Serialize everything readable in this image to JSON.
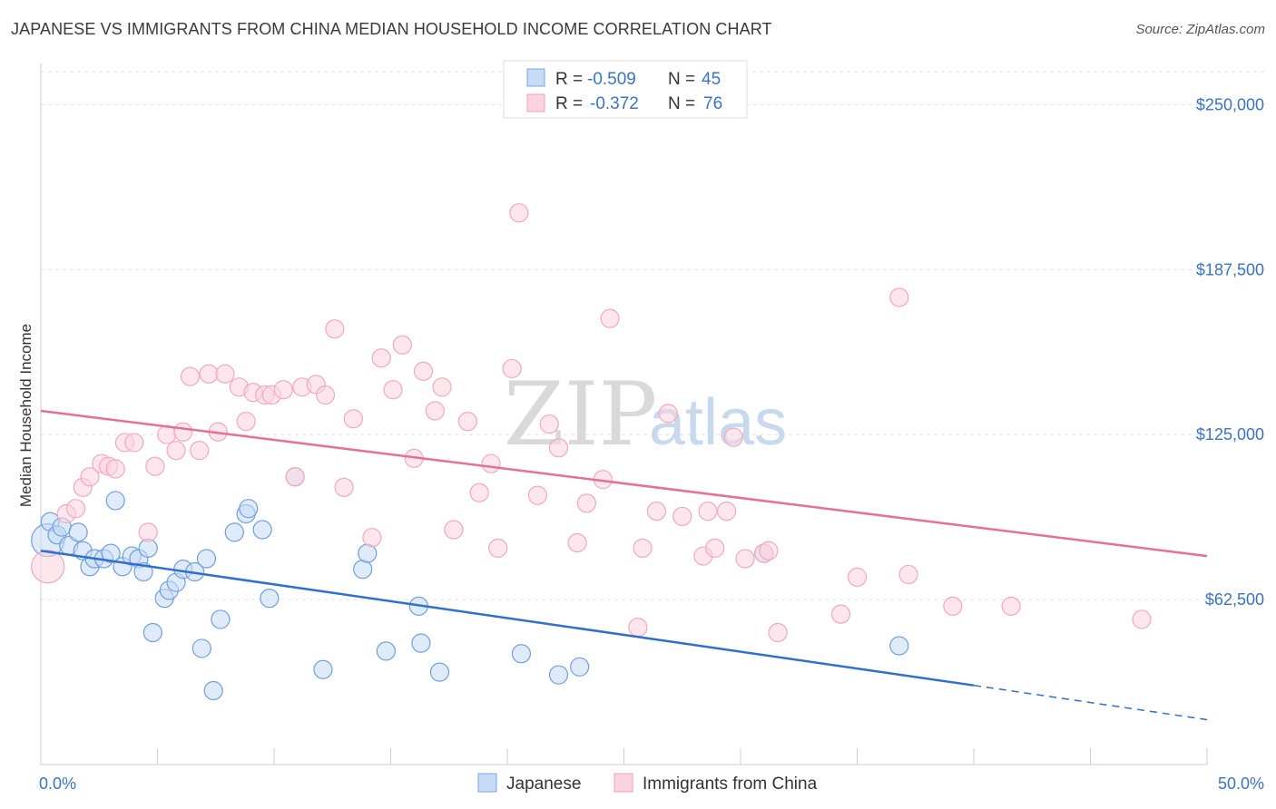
{
  "title": "JAPANESE VS IMMIGRANTS FROM CHINA MEDIAN HOUSEHOLD INCOME CORRELATION CHART",
  "source": "Source: ZipAtlas.com",
  "watermark": {
    "zip": "ZIP",
    "atlas": "atlas"
  },
  "chart_data": {
    "type": "scatter",
    "title": "JAPANESE VS IMMIGRANTS FROM CHINA MEDIAN HOUSEHOLD INCOME CORRELATION CHART",
    "ylabel": "Median Household Income",
    "xlim": [
      0,
      50
    ],
    "ylim": [
      0,
      262500
    ],
    "x_tick_labels": {
      "left": "0.0%",
      "right": "50.0%"
    },
    "y_ticks": [
      62500,
      125000,
      187500,
      250000
    ],
    "y_tick_labels": [
      "$62,500",
      "$125,000",
      "$187,500",
      "$250,000"
    ],
    "grid": true,
    "legend": {
      "position": "top-center",
      "rows": [
        {
          "r_label": "R = ",
          "r_value": "-0.509",
          "n_label": "N = ",
          "n_value": "45"
        },
        {
          "r_label": "R = ",
          "r_value": "-0.372",
          "n_label": "N = ",
          "n_value": "76"
        }
      ]
    },
    "series": [
      {
        "name": "Japanese",
        "color": "#6f9fdc",
        "line_color": "#2f6fcf",
        "trend": {
          "x": [
            0,
            40
          ],
          "y": [
            81000,
            30000
          ],
          "dash_to": [
            50,
            17000
          ]
        },
        "points": [
          [
            0.3,
            85000,
            18
          ],
          [
            0.4,
            92000,
            10
          ],
          [
            0.7,
            87000,
            10
          ],
          [
            0.9,
            90000,
            10
          ],
          [
            1.2,
            83000,
            10
          ],
          [
            1.6,
            88000,
            10
          ],
          [
            1.8,
            81000,
            10
          ],
          [
            2.1,
            75000,
            10
          ],
          [
            2.3,
            78000,
            10
          ],
          [
            2.7,
            78000,
            10
          ],
          [
            3.0,
            80000,
            10
          ],
          [
            3.2,
            100000,
            10
          ],
          [
            3.5,
            75000,
            10
          ],
          [
            3.9,
            79000,
            10
          ],
          [
            4.2,
            78000,
            10
          ],
          [
            4.4,
            73000,
            10
          ],
          [
            4.6,
            82000,
            10
          ],
          [
            4.8,
            50000,
            10
          ],
          [
            5.3,
            63000,
            10
          ],
          [
            5.5,
            66000,
            10
          ],
          [
            5.8,
            69000,
            10
          ],
          [
            6.1,
            74000,
            10
          ],
          [
            6.6,
            73000,
            10
          ],
          [
            6.9,
            44000,
            10
          ],
          [
            7.1,
            78000,
            10
          ],
          [
            7.4,
            28000,
            10
          ],
          [
            7.7,
            55000,
            10
          ],
          [
            8.3,
            88000,
            10
          ],
          [
            8.8,
            95000,
            10
          ],
          [
            8.9,
            97000,
            10
          ],
          [
            9.5,
            89000,
            10
          ],
          [
            9.8,
            63000,
            10
          ],
          [
            10.9,
            109000,
            10
          ],
          [
            12.1,
            36000,
            10
          ],
          [
            13.8,
            74000,
            10
          ],
          [
            14.0,
            80000,
            10
          ],
          [
            14.8,
            43000,
            10
          ],
          [
            16.2,
            60000,
            10
          ],
          [
            16.3,
            46000,
            10
          ],
          [
            17.1,
            35000,
            10
          ],
          [
            20.6,
            42000,
            10
          ],
          [
            22.2,
            34000,
            10
          ],
          [
            23.1,
            37000,
            10
          ],
          [
            31.0,
            80000,
            10
          ],
          [
            36.8,
            45000,
            10
          ]
        ]
      },
      {
        "name": "Immigrants from China",
        "color": "#f3a8bd",
        "line_color": "#e56f97",
        "trend": {
          "x": [
            0,
            50
          ],
          "y": [
            134000,
            79000
          ]
        },
        "points": [
          [
            0.3,
            75000,
            18
          ],
          [
            1.1,
            95000,
            10
          ],
          [
            1.5,
            97000,
            10
          ],
          [
            1.8,
            105000,
            10
          ],
          [
            2.1,
            109000,
            10
          ],
          [
            2.6,
            114000,
            10
          ],
          [
            2.9,
            113000,
            10
          ],
          [
            3.2,
            112000,
            10
          ],
          [
            3.6,
            122000,
            10
          ],
          [
            4.0,
            122000,
            10
          ],
          [
            4.6,
            88000,
            10
          ],
          [
            4.9,
            113000,
            10
          ],
          [
            5.4,
            125000,
            10
          ],
          [
            5.8,
            119000,
            10
          ],
          [
            6.1,
            126000,
            10
          ],
          [
            6.4,
            147000,
            10
          ],
          [
            6.8,
            119000,
            10
          ],
          [
            7.2,
            148000,
            10
          ],
          [
            7.6,
            126000,
            10
          ],
          [
            7.9,
            148000,
            10
          ],
          [
            8.5,
            143000,
            10
          ],
          [
            8.8,
            130000,
            10
          ],
          [
            9.1,
            141000,
            10
          ],
          [
            9.6,
            140000,
            10
          ],
          [
            9.9,
            140000,
            10
          ],
          [
            10.4,
            142000,
            10
          ],
          [
            10.9,
            109000,
            10
          ],
          [
            11.2,
            143000,
            10
          ],
          [
            11.8,
            144000,
            10
          ],
          [
            12.2,
            140000,
            10
          ],
          [
            12.6,
            165000,
            10
          ],
          [
            13.0,
            105000,
            10
          ],
          [
            13.4,
            131000,
            10
          ],
          [
            14.2,
            86000,
            10
          ],
          [
            14.6,
            154000,
            10
          ],
          [
            15.1,
            142000,
            10
          ],
          [
            15.5,
            159000,
            10
          ],
          [
            16.0,
            116000,
            10
          ],
          [
            16.4,
            149000,
            10
          ],
          [
            16.9,
            134000,
            10
          ],
          [
            17.2,
            143000,
            10
          ],
          [
            17.7,
            89000,
            10
          ],
          [
            18.3,
            130000,
            10
          ],
          [
            18.8,
            103000,
            10
          ],
          [
            19.3,
            114000,
            10
          ],
          [
            19.6,
            82000,
            10
          ],
          [
            20.2,
            150000,
            10
          ],
          [
            20.5,
            209000,
            10
          ],
          [
            21.3,
            102000,
            10
          ],
          [
            21.8,
            129000,
            10
          ],
          [
            22.2,
            120000,
            10
          ],
          [
            23.0,
            84000,
            10
          ],
          [
            23.4,
            99000,
            10
          ],
          [
            24.1,
            108000,
            10
          ],
          [
            24.4,
            169000,
            10
          ],
          [
            25.6,
            52000,
            10
          ],
          [
            25.8,
            82000,
            10
          ],
          [
            26.4,
            96000,
            10
          ],
          [
            26.9,
            133000,
            10
          ],
          [
            27.5,
            94000,
            10
          ],
          [
            28.4,
            79000,
            10
          ],
          [
            28.6,
            96000,
            10
          ],
          [
            28.9,
            82000,
            10
          ],
          [
            29.4,
            96000,
            10
          ],
          [
            29.7,
            124000,
            10
          ],
          [
            30.2,
            78000,
            10
          ],
          [
            31.0,
            80000,
            10
          ],
          [
            31.6,
            50000,
            10
          ],
          [
            34.3,
            57000,
            10
          ],
          [
            35.0,
            71000,
            10
          ],
          [
            36.8,
            177000,
            10
          ],
          [
            37.2,
            72000,
            10
          ],
          [
            39.1,
            60000,
            10
          ],
          [
            41.6,
            60000,
            10
          ],
          [
            47.2,
            55000,
            10
          ],
          [
            31.2,
            81000,
            10
          ]
        ]
      }
    ]
  }
}
